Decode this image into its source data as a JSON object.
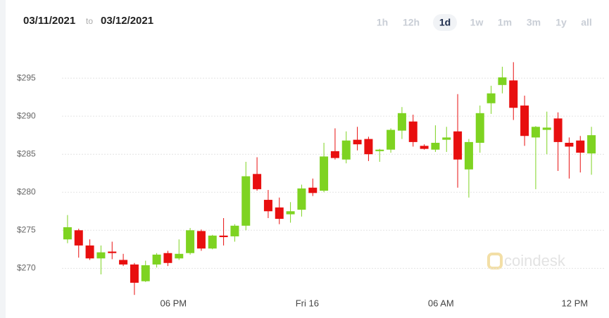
{
  "header": {
    "from": "03/11/2021",
    "sep": "to",
    "to": "03/12/2021"
  },
  "controls": {
    "ranges": [
      "1h",
      "12h",
      "1d",
      "1w",
      "1m",
      "3m",
      "1y",
      "all"
    ],
    "active": 2
  },
  "watermark": "coindesk",
  "chart_data": {
    "type": "candlestick",
    "categories": [
      null,
      null,
      null,
      null,
      null,
      null,
      null,
      null,
      null,
      null,
      "06 PM",
      null,
      null,
      null,
      null,
      null,
      null,
      null,
      null,
      null,
      null,
      null,
      "Fri 16",
      null,
      null,
      null,
      null,
      null,
      null,
      null,
      null,
      null,
      null,
      null,
      "06 AM",
      null,
      null,
      null,
      null,
      null,
      null,
      null,
      null,
      null,
      null,
      null,
      "12 PM",
      null
    ],
    "open": [
      273.8,
      275,
      273,
      271.3,
      272.2,
      271.1,
      270.5,
      268.3,
      270.5,
      272,
      271.3,
      272,
      274.9,
      272.6,
      274.3,
      274.2,
      275.6,
      282.4,
      279,
      278,
      277.1,
      277.7,
      280.6,
      280.2,
      285.4,
      284.3,
      286.9,
      287,
      285.4,
      285.6,
      288.1,
      289.3,
      286.1,
      285.6,
      286.9,
      288,
      283,
      286.5,
      291.7,
      294.1,
      294.7,
      291.4,
      287.2,
      288.2,
      289.7,
      286.5,
      286.8,
      285.1
    ],
    "high": [
      277,
      275.2,
      273.8,
      273,
      273.5,
      271.9,
      270.7,
      271,
      272,
      272.3,
      273.8,
      275.3,
      275.1,
      274.4,
      276.6,
      275.8,
      284,
      284.6,
      280.3,
      279.3,
      278.7,
      281,
      281.8,
      286.5,
      288.4,
      288,
      288.6,
      287.3,
      285.7,
      288.4,
      291.2,
      290.2,
      286.3,
      288.8,
      288.6,
      292.9,
      287,
      291.4,
      294,
      296.5,
      297.1,
      292.7,
      288.7,
      290.6,
      290.5,
      287.2,
      287.4,
      288.6
    ],
    "low": [
      273.3,
      271.4,
      271.1,
      269.2,
      271.2,
      270.3,
      266.5,
      268.2,
      270.1,
      270.3,
      271.1,
      271.8,
      272.3,
      272.5,
      273,
      273.5,
      275,
      280.2,
      276.6,
      275.8,
      276,
      276.8,
      279.5,
      280,
      284.3,
      283.8,
      285.5,
      284.1,
      284,
      285.2,
      287,
      286,
      285.6,
      285.3,
      285.3,
      280.6,
      279.3,
      285.2,
      290.3,
      293,
      289.5,
      286.1,
      280.4,
      285,
      282.8,
      281.8,
      282.6,
      282.3
    ],
    "close": [
      275.4,
      273,
      271.3,
      272.1,
      272,
      270.5,
      268.1,
      270.4,
      271.8,
      270.7,
      271.9,
      275,
      272.6,
      274.3,
      274.1,
      275.6,
      282.1,
      280.4,
      277.5,
      276.5,
      277.5,
      280.5,
      279.9,
      284.7,
      284.5,
      286.8,
      286.3,
      285,
      285.6,
      288.2,
      290.4,
      286.6,
      285.7,
      286.5,
      287.2,
      284.3,
      286.6,
      290.4,
      293,
      295.1,
      291.1,
      287.4,
      288.6,
      288.5,
      286.6,
      286,
      285.2,
      287.5
    ],
    "up_color": "#7ed321",
    "down_color": "#e80f0f",
    "ylim": [
      265.5,
      298.8
    ],
    "yticks": [
      {
        "value": 270,
        "label": "$270"
      },
      {
        "value": 275,
        "label": "$275"
      },
      {
        "value": 280,
        "label": "$280"
      },
      {
        "value": 285,
        "label": "$285"
      },
      {
        "value": 290,
        "label": "$290"
      },
      {
        "value": 295,
        "label": "$295"
      }
    ],
    "grid": true
  }
}
